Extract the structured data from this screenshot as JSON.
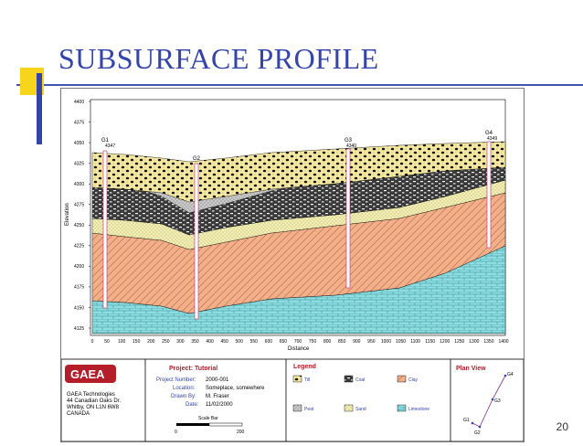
{
  "slide": {
    "title": "SUBSURFACE PROFILE",
    "page_number": "20"
  },
  "profile": {
    "y_axis_label": "Elevation",
    "x_axis_label": "Distance",
    "y_ticks": [
      "4400",
      "4375",
      "4350",
      "4325",
      "4300",
      "4275",
      "4250",
      "4225",
      "4200",
      "4175",
      "4150",
      "4125"
    ],
    "x_ticks": [
      "0",
      "50",
      "100",
      "150",
      "200",
      "250",
      "300",
      "350",
      "400",
      "450",
      "500",
      "550",
      "600",
      "650",
      "700",
      "750",
      "800",
      "850",
      "900",
      "950",
      "1000",
      "1050",
      "1100",
      "1150",
      "1200",
      "1250",
      "1300",
      "1350",
      "1400"
    ],
    "boreholes": [
      {
        "id": "G1",
        "elev": "4347"
      },
      {
        "id": "G2",
        "elev": ""
      },
      {
        "id": "G3",
        "elev": "4340"
      },
      {
        "id": "G4",
        "elev": "4349"
      }
    ]
  },
  "title_block": {
    "logo": "GAEA",
    "company_lines": [
      "GAEA Technologies",
      "44 Canadian Oaks Dr.",
      "Whitby, ON  L1N 6W8",
      "CANADA"
    ],
    "project_title": "Project: Tutorial",
    "fields": [
      {
        "label": "Project Number:",
        "value": "2000-001"
      },
      {
        "label": "Location:",
        "value": "Someplace, somewhere"
      },
      {
        "label": "Drawn By:",
        "value": "M. Fraser"
      },
      {
        "label": "Date:",
        "value": "11/02/2000"
      }
    ],
    "scale_label": "Scale Bar",
    "scale_ticks": [
      "0",
      "200"
    ],
    "legend_title": "Legend",
    "legend": [
      "Till",
      "Coal",
      "Clay",
      "Peat",
      "Sand",
      "Limestone"
    ],
    "plan_view_title": "Plan View",
    "plan_points": [
      "G4",
      "G3",
      "G1",
      "G2"
    ]
  },
  "colors": {
    "title_blue": "#3344aa",
    "accent_yellow": "#f7d51d",
    "clay": "#f2b08a",
    "limestone": "#8fdde0",
    "sand": "#f3efb4",
    "till": "#f5e8a0",
    "coal": "#3a3a3a",
    "peat": "#c9c9c9"
  }
}
